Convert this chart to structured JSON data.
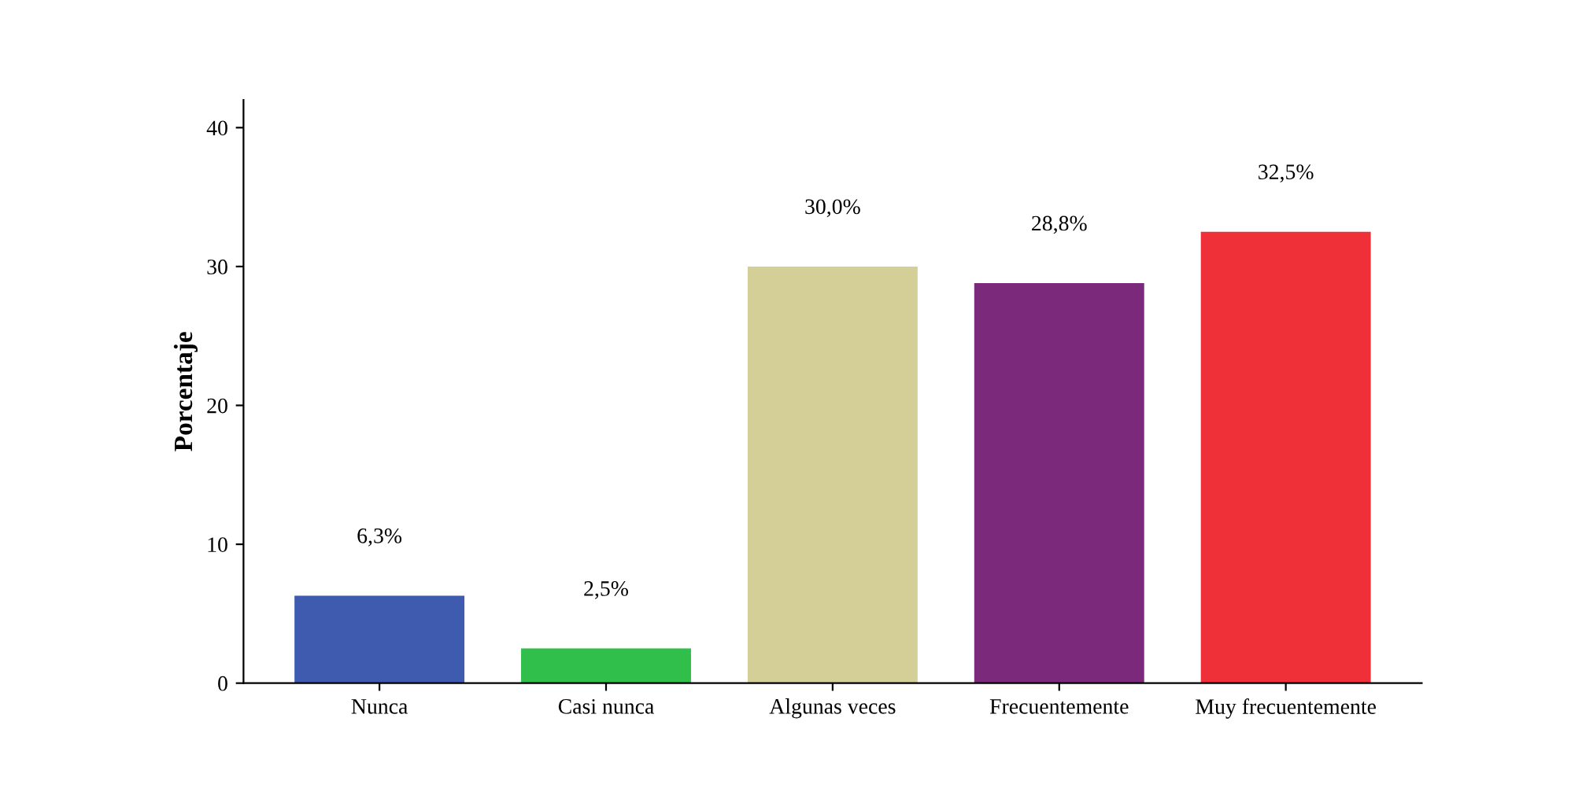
{
  "chart_data": {
    "type": "bar",
    "ylabel": "Porcentaje",
    "categories": [
      "Nunca",
      "Casi nunca",
      "Algunas veces",
      "Frecuentemente",
      "Muy frecuentemente"
    ],
    "values": [
      6.3,
      2.5,
      30.0,
      28.8,
      32.5
    ],
    "value_labels": [
      "6,3%",
      "2,5%",
      "30,0%",
      "28,8%",
      "32,5%"
    ],
    "colors": [
      "#3f5bb0",
      "#2fbf4a",
      "#d3cf96",
      "#7b2a7b",
      "#ef3038"
    ],
    "ylim": [
      0,
      42
    ],
    "yticks": [
      0,
      10,
      20,
      30,
      40
    ],
    "grid": false,
    "legend": false
  }
}
